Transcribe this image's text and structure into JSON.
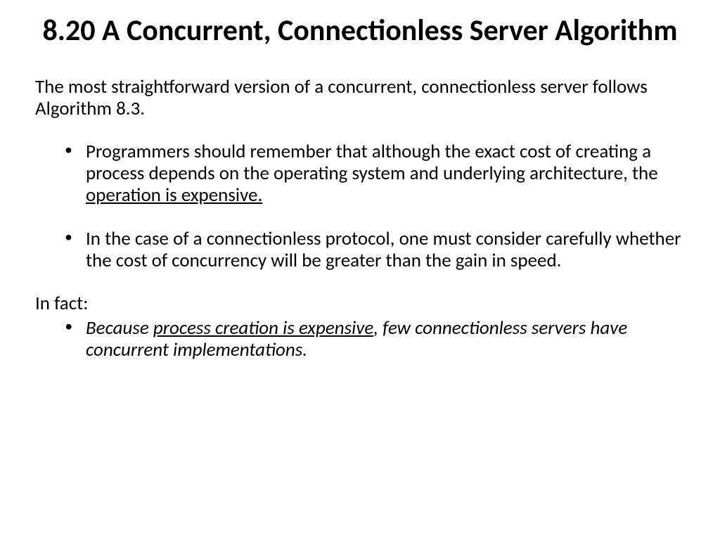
{
  "title": "8.20 A Concurrent, Connectionless Server Algorithm",
  "intro": " The most straightforward version of a concurrent, connectionless server follows Algorithm 8.3.",
  "bullet1_a": "Programmers should remember that although the exact cost of creating a process depends on the operating system and underlying architecture, the ",
  "bullet1_b": "operation is expensive.",
  "bullet2": "In the case of a connectionless protocol, one must consider carefully whether the cost of concurrency will be greater than the gain in speed.",
  "infact": "In fact:",
  "bullet3_a": "Because ",
  "bullet3_b": "process creation is expensive",
  "bullet3_c": ", few connectionless servers have concurrent implementations.",
  "colors": {
    "text": "#000000",
    "background": "#ffffff"
  },
  "fonts": {
    "title_size": 42,
    "body_size": 27,
    "family": "Calibri"
  }
}
